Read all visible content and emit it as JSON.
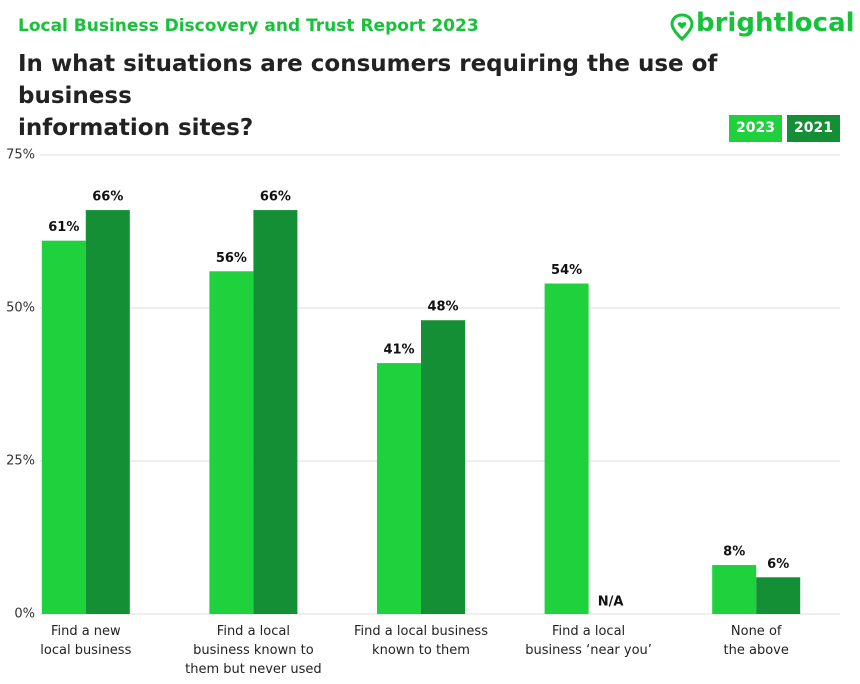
{
  "header": {
    "report": "Local Business Discovery and Trust Report 2023",
    "brand": "brightlocal"
  },
  "chart_data": {
    "type": "bar",
    "title": "In what situations are consumers requiring the use of business\ninformation sites?",
    "categories": [
      "Find a new\nlocal business",
      "Find a local\nbusiness known to\nthem but never used",
      "Find a local business\nknown to them",
      "Find a local\nbusiness ‘near you’",
      "None of\nthe above"
    ],
    "series": [
      {
        "name": "2023",
        "color": "#1ed13d",
        "values": [
          61,
          56,
          41,
          54,
          8
        ],
        "value_labels": [
          "61%",
          "56%",
          "41%",
          "54%",
          "8%"
        ]
      },
      {
        "name": "2021",
        "color": "#148f35",
        "values": [
          66,
          66,
          48,
          null,
          6
        ],
        "value_labels": [
          "66%",
          "66%",
          "48%",
          "N/A",
          "6%"
        ]
      }
    ],
    "ylim": [
      0,
      75
    ],
    "yticks": [
      {
        "value": 0,
        "label": "0%"
      },
      {
        "value": 25,
        "label": "25%"
      },
      {
        "value": 50,
        "label": "50%"
      },
      {
        "value": 75,
        "label": "75%"
      }
    ],
    "grid": true,
    "legend": "top-right"
  }
}
